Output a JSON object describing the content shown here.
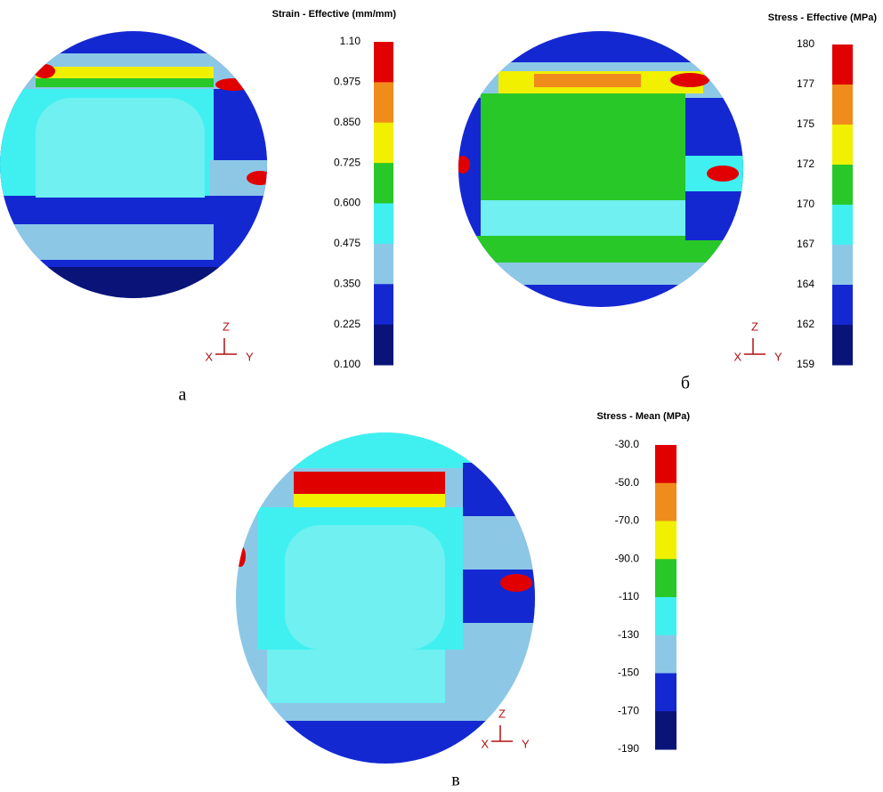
{
  "panels": [
    {
      "label": "а",
      "legend_title": "Strain - Effective (mm/mm)",
      "ticks": [
        "1.10",
        "0.975",
        "0.850",
        "0.725",
        "0.600",
        "0.475",
        "0.350",
        "0.225",
        "0.100"
      ],
      "triad": {
        "z": "Z",
        "x": "X",
        "y": "Y"
      }
    },
    {
      "label": "б",
      "legend_title": "Stress - Effective (MPa)",
      "ticks": [
        "180",
        "177",
        "175",
        "172",
        "170",
        "167",
        "164",
        "162",
        "159"
      ],
      "triad": {
        "z": "Z",
        "x": "X",
        "y": "Y"
      }
    },
    {
      "label": "в",
      "legend_title": "Stress - Mean (MPa)",
      "ticks": [
        "-30.0",
        "-50.0",
        "-70.0",
        "-90.0",
        "-110",
        "-130",
        "-150",
        "-170",
        "-190"
      ],
      "triad": {
        "z": "Z",
        "x": "X",
        "y": "Y"
      }
    }
  ],
  "band_colors": [
    "#e00000",
    "#f08c1c",
    "#f0f000",
    "#28c828",
    "#40f0f0",
    "#8cc8e6",
    "#1428d2",
    "#0a1478"
  ]
}
